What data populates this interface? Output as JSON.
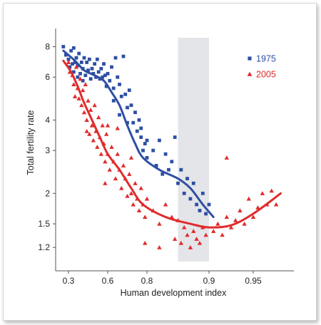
{
  "chart_data": {
    "type": "scatter",
    "title": "",
    "xlabel": "Human development index",
    "ylabel": "Total fertility rate",
    "x_scale": "stretched",
    "x_scale_note_visible": false,
    "x_ticks": [
      0.3,
      0.6,
      0.8,
      0.9,
      0.95
    ],
    "y_scale": "log",
    "y_ticks": [
      1.2,
      1.5,
      2,
      3,
      4,
      6,
      8
    ],
    "xlim": [
      0.25,
      0.985
    ],
    "ylim": [
      1.05,
      9.0
    ],
    "highlight_band": {
      "x": [
        0.85,
        0.9
      ]
    },
    "legend": {
      "placement": "top-right"
    },
    "series": [
      {
        "name": "1975",
        "marker": "square",
        "color": "#2e4fa3",
        "points": [
          [
            0.28,
            8.0
          ],
          [
            0.29,
            7.4
          ],
          [
            0.3,
            7.1
          ],
          [
            0.31,
            6.6
          ],
          [
            0.32,
            7.7
          ],
          [
            0.33,
            6.8
          ],
          [
            0.34,
            6.3
          ],
          [
            0.34,
            7.9
          ],
          [
            0.35,
            6.9
          ],
          [
            0.36,
            7.2
          ],
          [
            0.37,
            6.0
          ],
          [
            0.37,
            6.7
          ],
          [
            0.38,
            7.5
          ],
          [
            0.39,
            6.2
          ],
          [
            0.4,
            6.9
          ],
          [
            0.41,
            6.5
          ],
          [
            0.41,
            5.8
          ],
          [
            0.42,
            7.2
          ],
          [
            0.43,
            6.1
          ],
          [
            0.44,
            6.9
          ],
          [
            0.45,
            6.4
          ],
          [
            0.46,
            7.1
          ],
          [
            0.47,
            5.9
          ],
          [
            0.48,
            6.5
          ],
          [
            0.49,
            6.2
          ],
          [
            0.5,
            6.8
          ],
          [
            0.51,
            6.0
          ],
          [
            0.52,
            7.1
          ],
          [
            0.53,
            6.3
          ],
          [
            0.54,
            5.9
          ],
          [
            0.55,
            6.5
          ],
          [
            0.56,
            6.0
          ],
          [
            0.57,
            6.8
          ],
          [
            0.58,
            6.1
          ],
          [
            0.59,
            5.5
          ],
          [
            0.6,
            6.2
          ],
          [
            0.61,
            5.8
          ],
          [
            0.62,
            6.6
          ],
          [
            0.63,
            5.4
          ],
          [
            0.64,
            7.2
          ],
          [
            0.65,
            6.0
          ],
          [
            0.66,
            5.6
          ],
          [
            0.67,
            5.0
          ],
          [
            0.68,
            7.3
          ],
          [
            0.69,
            5.1
          ],
          [
            0.7,
            4.5
          ],
          [
            0.71,
            5.3
          ],
          [
            0.72,
            4.6
          ],
          [
            0.73,
            3.9
          ],
          [
            0.74,
            4.3
          ],
          [
            0.75,
            3.6
          ],
          [
            0.76,
            4.0
          ],
          [
            0.77,
            3.4
          ],
          [
            0.78,
            3.0
          ],
          [
            0.79,
            3.2
          ],
          [
            0.8,
            2.8
          ],
          [
            0.81,
            3.0
          ],
          [
            0.815,
            2.6
          ],
          [
            0.82,
            3.3
          ],
          [
            0.825,
            2.4
          ],
          [
            0.83,
            2.9
          ],
          [
            0.835,
            2.5
          ],
          [
            0.84,
            2.7
          ],
          [
            0.845,
            3.4
          ],
          [
            0.85,
            2.2
          ],
          [
            0.855,
            2.5
          ],
          [
            0.86,
            2.0
          ],
          [
            0.865,
            2.3
          ],
          [
            0.87,
            1.9
          ],
          [
            0.875,
            2.2
          ],
          [
            0.88,
            1.8
          ],
          [
            0.885,
            1.7
          ],
          [
            0.89,
            2.0
          ],
          [
            0.895,
            1.65
          ],
          [
            0.9,
            1.8
          ],
          [
            0.63,
            4.8
          ],
          [
            0.66,
            4.2
          ],
          [
            0.7,
            3.9
          ],
          [
            0.77,
            3.7
          ],
          [
            0.8,
            3.3
          ]
        ],
        "trend": [
          [
            0.28,
            7.7
          ],
          [
            0.35,
            7.0
          ],
          [
            0.42,
            6.4
          ],
          [
            0.5,
            6.1
          ],
          [
            0.57,
            5.8
          ],
          [
            0.62,
            5.2
          ],
          [
            0.66,
            4.6
          ],
          [
            0.7,
            3.8
          ],
          [
            0.74,
            3.2
          ],
          [
            0.78,
            2.8
          ],
          [
            0.82,
            2.5
          ],
          [
            0.85,
            2.3
          ],
          [
            0.87,
            2.1
          ],
          [
            0.89,
            1.8
          ],
          [
            0.905,
            1.6
          ]
        ]
      },
      {
        "name": "2005",
        "marker": "triangle",
        "color": "#e02b2b",
        "points": [
          [
            0.3,
            6.9
          ],
          [
            0.31,
            6.3
          ],
          [
            0.33,
            6.1
          ],
          [
            0.34,
            5.6
          ],
          [
            0.35,
            5.0
          ],
          [
            0.36,
            6.6
          ],
          [
            0.37,
            5.4
          ],
          [
            0.38,
            4.9
          ],
          [
            0.39,
            5.9
          ],
          [
            0.4,
            4.6
          ],
          [
            0.41,
            5.3
          ],
          [
            0.42,
            4.3
          ],
          [
            0.43,
            5.6
          ],
          [
            0.44,
            4.0
          ],
          [
            0.45,
            4.8
          ],
          [
            0.46,
            3.5
          ],
          [
            0.47,
            4.4
          ],
          [
            0.48,
            3.8
          ],
          [
            0.49,
            3.3
          ],
          [
            0.5,
            4.6
          ],
          [
            0.51,
            3.6
          ],
          [
            0.52,
            3.1
          ],
          [
            0.53,
            4.1
          ],
          [
            0.54,
            3.4
          ],
          [
            0.55,
            2.9
          ],
          [
            0.56,
            3.8
          ],
          [
            0.57,
            3.2
          ],
          [
            0.58,
            2.7
          ],
          [
            0.59,
            3.5
          ],
          [
            0.6,
            2.9
          ],
          [
            0.61,
            2.5
          ],
          [
            0.62,
            3.1
          ],
          [
            0.63,
            2.7
          ],
          [
            0.64,
            2.3
          ],
          [
            0.65,
            2.9
          ],
          [
            0.66,
            2.5
          ],
          [
            0.67,
            2.1
          ],
          [
            0.68,
            2.6
          ],
          [
            0.69,
            2.3
          ],
          [
            0.7,
            1.95
          ],
          [
            0.71,
            2.4
          ],
          [
            0.72,
            2.0
          ],
          [
            0.73,
            1.8
          ],
          [
            0.74,
            2.2
          ],
          [
            0.75,
            1.9
          ],
          [
            0.76,
            1.7
          ],
          [
            0.77,
            2.1
          ],
          [
            0.78,
            1.8
          ],
          [
            0.79,
            1.6
          ],
          [
            0.8,
            1.9
          ],
          [
            0.81,
            1.7
          ],
          [
            0.82,
            1.5
          ],
          [
            0.83,
            1.8
          ],
          [
            0.84,
            1.6
          ],
          [
            0.845,
            1.3
          ],
          [
            0.85,
            1.55
          ],
          [
            0.855,
            1.25
          ],
          [
            0.86,
            1.45
          ],
          [
            0.865,
            1.35
          ],
          [
            0.87,
            1.2
          ],
          [
            0.875,
            1.4
          ],
          [
            0.88,
            1.3
          ],
          [
            0.885,
            1.25
          ],
          [
            0.89,
            1.45
          ],
          [
            0.895,
            1.35
          ],
          [
            0.905,
            1.4
          ],
          [
            0.91,
            1.5
          ],
          [
            0.915,
            1.35
          ],
          [
            0.92,
            1.6
          ],
          [
            0.925,
            1.45
          ],
          [
            0.93,
            1.55
          ],
          [
            0.935,
            1.7
          ],
          [
            0.94,
            1.5
          ],
          [
            0.945,
            1.9
          ],
          [
            0.95,
            1.6
          ],
          [
            0.955,
            1.75
          ],
          [
            0.96,
            2.0
          ],
          [
            0.965,
            1.8
          ],
          [
            0.97,
            2.05
          ],
          [
            0.975,
            1.8
          ],
          [
            0.92,
            2.8
          ],
          [
            0.79,
            1.25
          ],
          [
            0.82,
            1.2
          ],
          [
            0.65,
            3.7
          ],
          [
            0.58,
            2.2
          ],
          [
            0.44,
            3.6
          ],
          [
            0.72,
            2.8
          ],
          [
            0.6,
            3.8
          ]
        ],
        "trend": [
          [
            0.28,
            7.0
          ],
          [
            0.32,
            6.3
          ],
          [
            0.37,
            5.5
          ],
          [
            0.42,
            4.7
          ],
          [
            0.48,
            4.0
          ],
          [
            0.54,
            3.4
          ],
          [
            0.6,
            2.9
          ],
          [
            0.66,
            2.5
          ],
          [
            0.72,
            2.1
          ],
          [
            0.78,
            1.8
          ],
          [
            0.83,
            1.6
          ],
          [
            0.87,
            1.5
          ],
          [
            0.9,
            1.45
          ],
          [
            0.925,
            1.48
          ],
          [
            0.95,
            1.65
          ],
          [
            0.98,
            2.0
          ]
        ]
      }
    ]
  }
}
